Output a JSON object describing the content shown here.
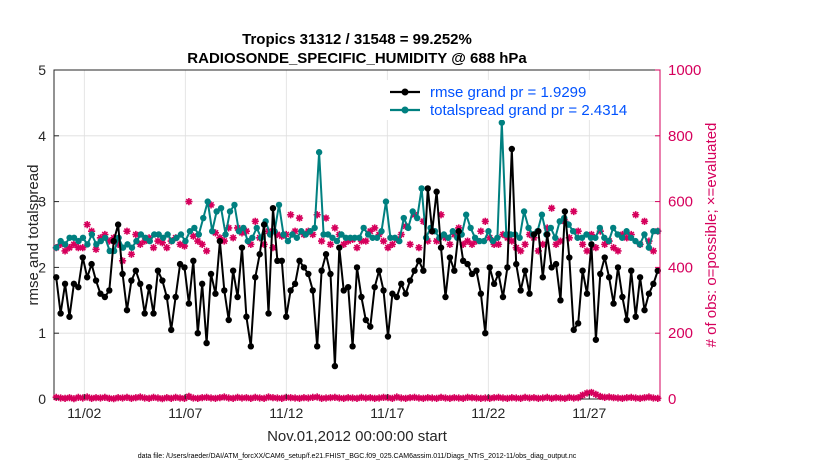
{
  "chart_data": {
    "type": "line",
    "title_line1": "Tropics 31312 / 31548 = 99.252%",
    "title_line2": "RADIOSONDE_SPECIFIC_HUMIDITY @ 688 hPa",
    "xlabel": "Nov.01,2012 00:00:00 start",
    "ylabel_left": "rmse and totalspread",
    "ylabel_right": "# of obs: o=possible; ×=evaluated",
    "footnote": "data file: /Users/raeder/DAI/ATM_forcXX/CAM6_setup/f.e21.FHIST_BGC.f09_025.CAM6assim.011/Diags_NTrS_2012-11/obs_diag_output.nc",
    "ylim_left": [
      0,
      5
    ],
    "ylim_right": [
      0,
      1000
    ],
    "xlim": [
      0.5,
      30.5
    ],
    "yticks_left": [
      "0",
      "1",
      "2",
      "3",
      "4",
      "5"
    ],
    "yticks_right": [
      "0",
      "200",
      "400",
      "600",
      "800",
      "1000"
    ],
    "xticks": [
      {
        "pos": 2,
        "label": "11/02"
      },
      {
        "pos": 7,
        "label": "11/07"
      },
      {
        "pos": 12,
        "label": "11/12"
      },
      {
        "pos": 17,
        "label": "11/17"
      },
      {
        "pos": 22,
        "label": "11/22"
      },
      {
        "pos": 27,
        "label": "11/27"
      }
    ],
    "grid": true,
    "colors": {
      "rmse": "#000000",
      "spread": "#008080",
      "obs": "#d6005c",
      "legend_text": "#0052ff"
    },
    "series": [
      {
        "name": "rmse grand pr = 1.9299",
        "axis": "left",
        "values": [
          1.85,
          1.3,
          1.75,
          1.25,
          1.75,
          1.7,
          2.15,
          1.85,
          2.05,
          1.8,
          1.6,
          1.55,
          1.65,
          2.4,
          2.65,
          1.9,
          1.35,
          1.8,
          1.95,
          1.75,
          1.3,
          1.7,
          1.3,
          1.95,
          1.8,
          1.55,
          1.05,
          1.55,
          2.05,
          2.0,
          1.45,
          2.1,
          1.0,
          1.75,
          0.85,
          1.9,
          1.6,
          2.4,
          1.65,
          1.2,
          1.95,
          1.55,
          2.3,
          1.25,
          0.8,
          1.85,
          2.2,
          2.65,
          1.3,
          2.9,
          2.1,
          2.1,
          1.25,
          1.65,
          1.75,
          2.1,
          2.0,
          1.9,
          1.65,
          0.8,
          1.95,
          2.2,
          1.9,
          0.5,
          2.3,
          1.65,
          1.7,
          0.8,
          2.0,
          1.55,
          1.2,
          1.1,
          1.7,
          1.95,
          1.65,
          0.95,
          1.6,
          1.55,
          1.75,
          1.6,
          1.8,
          1.95,
          2.1,
          1.95,
          3.2,
          2.55,
          3.15,
          2.3,
          1.55,
          2.15,
          1.95,
          2.55,
          2.1,
          2.05,
          1.9,
          1.95,
          1.6,
          1.0,
          2.0,
          1.75,
          1.9,
          1.55,
          2.0,
          3.8,
          2.05,
          1.65,
          1.95,
          1.6,
          2.5,
          2.55,
          1.85,
          2.5,
          2.0,
          2.05,
          1.5,
          2.85,
          2.15,
          1.05,
          1.15,
          1.95,
          1.6,
          2.35,
          0.9,
          1.9,
          2.15,
          1.85,
          1.45,
          2.0,
          1.55,
          1.2,
          1.95,
          1.25,
          1.85,
          1.35,
          1.6,
          1.75,
          1.95
        ]
      },
      {
        "name": "totalspread grand pr = 2.4314",
        "axis": "left",
        "values": [
          2.3,
          2.4,
          2.35,
          2.45,
          2.45,
          2.4,
          2.45,
          2.35,
          2.5,
          2.35,
          2.4,
          2.45,
          2.25,
          2.25,
          2.45,
          2.3,
          2.35,
          2.3,
          2.4,
          2.5,
          2.45,
          2.4,
          2.5,
          2.5,
          2.45,
          2.5,
          2.4,
          2.45,
          2.5,
          2.4,
          2.55,
          2.6,
          2.5,
          2.75,
          3.0,
          2.55,
          2.85,
          2.9,
          2.5,
          2.85,
          2.95,
          2.55,
          2.6,
          2.4,
          2.45,
          2.6,
          2.45,
          2.7,
          2.5,
          2.55,
          2.95,
          2.5,
          2.4,
          2.5,
          2.45,
          2.55,
          2.5,
          2.55,
          2.6,
          3.75,
          2.5,
          2.5,
          2.45,
          2.4,
          2.5,
          2.45,
          2.45,
          2.45,
          2.45,
          2.6,
          2.5,
          2.45,
          2.45,
          2.55,
          3.0,
          2.45,
          2.45,
          2.4,
          2.75,
          2.6,
          2.85,
          2.75,
          3.2,
          2.45,
          2.6,
          2.55,
          2.45,
          2.5,
          2.45,
          2.55,
          2.45,
          2.5,
          2.8,
          2.6,
          2.45,
          2.4,
          2.4,
          2.55,
          2.4,
          2.45,
          4.2,
          2.5,
          2.5,
          2.5,
          2.45,
          2.85,
          2.6,
          2.5,
          2.55,
          2.8,
          2.5,
          2.6,
          2.45,
          2.7,
          2.75,
          2.65,
          2.55,
          2.45,
          2.45,
          2.5,
          2.45,
          2.45,
          2.6,
          2.45,
          2.4,
          2.6,
          2.5,
          2.45,
          2.55,
          2.45,
          2.4,
          2.35,
          2.5,
          2.3,
          2.55,
          2.55
        ]
      },
      {
        "name": "evaluated obs count",
        "axis": "right",
        "values": [
          460,
          470,
          450,
          460,
          470,
          460,
          460,
          530,
          510,
          455,
          490,
          500,
          480,
          490,
          470,
          420,
          510,
          440,
          500,
          470,
          480,
          490,
          460,
          480,
          475,
          460,
          480,
          490,
          470,
          465,
          600,
          495,
          480,
          470,
          450,
          590,
          505,
          490,
          480,
          520,
          490,
          520,
          505,
          510,
          470,
          540,
          490,
          470,
          510,
          460,
          500,
          495,
          500,
          560,
          510,
          550,
          500,
          510,
          500,
          560,
          480,
          550,
          470,
          520,
          500,
          470,
          480,
          485,
          460,
          480,
          480,
          510,
          520,
          500,
          480,
          460,
          470,
          485,
          500,
          525,
          470,
          560,
          460,
          540,
          480,
          510,
          480,
          560,
          490,
          470,
          500,
          520,
          470,
          480,
          470,
          480,
          510,
          540,
          490,
          470,
          470,
          500,
          490,
          480,
          460,
          450,
          470,
          500,
          490,
          450,
          470,
          520,
          580,
          470,
          480,
          540,
          490,
          570,
          510,
          470,
          450,
          500,
          460,
          510,
          470,
          480,
          460,
          450,
          500,
          490,
          500,
          560,
          470,
          540,
          480,
          450,
          510
        ]
      },
      {
        "name": "possible minus evaluated",
        "axis": "right",
        "values": [
          5,
          3,
          2,
          4,
          1,
          5,
          3,
          6,
          2,
          4,
          3,
          5,
          2,
          1,
          4,
          3,
          5,
          2,
          4,
          6,
          3,
          2,
          5,
          3,
          1,
          4,
          2,
          5,
          3,
          2,
          8,
          3,
          2,
          4,
          5,
          3,
          2,
          4,
          6,
          3,
          2,
          5,
          3,
          4,
          2,
          5,
          3,
          2,
          6,
          4,
          3,
          2,
          5,
          4,
          3,
          2,
          4,
          3,
          5,
          6,
          2,
          3,
          4,
          5,
          3,
          2,
          4,
          3,
          2,
          5,
          3,
          4,
          2,
          3,
          5,
          4,
          2,
          6,
          3,
          2,
          4,
          5,
          3,
          2,
          4,
          3,
          2,
          5,
          3,
          2,
          4,
          3,
          2,
          5,
          4,
          3,
          2,
          3,
          2,
          4,
          5,
          3,
          2,
          4,
          3,
          2,
          5,
          3,
          4,
          2,
          3,
          5,
          2,
          4,
          3,
          2,
          5,
          3,
          4,
          12,
          18,
          20,
          14,
          8,
          5,
          6,
          4,
          3,
          2,
          4,
          5,
          3,
          2,
          4,
          6,
          3,
          2
        ]
      }
    ]
  }
}
